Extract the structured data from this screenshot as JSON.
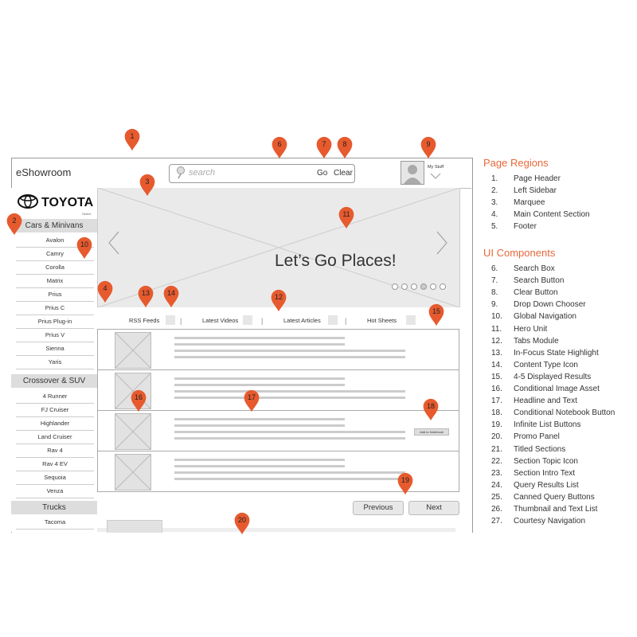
{
  "header": {
    "app_title": "eShowroom",
    "search_placeholder": "search",
    "go_label": "Go",
    "clear_label": "Clear",
    "my_stuff_label": "My Stuff"
  },
  "logo": {
    "brand": "TOYOTA",
    "sub": "Select"
  },
  "sidebar": {
    "categories": [
      {
        "title": "Cars & Minivans",
        "items": [
          "Avalon",
          "Camry",
          "Corolla",
          "Matrix",
          "Prius",
          "Prius C",
          "Prius Plug-in",
          "Prius V",
          "Sienna",
          "Yaris"
        ]
      },
      {
        "title": "Crossover & SUV",
        "items": [
          "4 Runner",
          "FJ Cruiser",
          "Highlander",
          "Land Cruiser",
          "Rav 4",
          "Rav 4 EV",
          "Sequoia",
          "Venza"
        ]
      },
      {
        "title": "Trucks",
        "items": [
          "Tacoma"
        ]
      }
    ]
  },
  "marquee": {
    "hero_text": "Let’s Go Places!",
    "slide_count": 6,
    "active_slide": 4
  },
  "tabs": [
    "RSS Feeds",
    "Latest Videos",
    "Latest Articles",
    "Hot Sheets"
  ],
  "list": {
    "notebook_label": "Add to Notebook"
  },
  "pagination": {
    "previous": "Previous",
    "next": "Next"
  },
  "pins": [
    "1",
    "2",
    "3",
    "4",
    "6",
    "7",
    "8",
    "9",
    "10",
    "11",
    "12",
    "13",
    "14",
    "15",
    "16",
    "17",
    "18",
    "19",
    "20"
  ],
  "legend": {
    "regions_title": "Page Regions",
    "regions": [
      {
        "n": "1.",
        "label": "Page Header"
      },
      {
        "n": "2.",
        "label": "Left Sidebar"
      },
      {
        "n": "3.",
        "label": "Marquee"
      },
      {
        "n": "4.",
        "label": "Main Content Section"
      },
      {
        "n": "5.",
        "label": "Footer"
      }
    ],
    "components_title": "UI Components",
    "components": [
      {
        "n": "6.",
        "label": "Search Box"
      },
      {
        "n": "7.",
        "label": "Search Button"
      },
      {
        "n": "8.",
        "label": "Clear Button"
      },
      {
        "n": "9.",
        "label": "Drop Down Chooser"
      },
      {
        "n": "10.",
        "label": "Global Navigation"
      },
      {
        "n": "11.",
        "label": "Hero Unit"
      },
      {
        "n": "12.",
        "label": "Tabs Module"
      },
      {
        "n": "13.",
        "label": "In-Focus State Highlight"
      },
      {
        "n": "14.",
        "label": "Content Type Icon"
      },
      {
        "n": "15.",
        "label": "4-5 Displayed Results"
      },
      {
        "n": "16.",
        "label": "Conditional Image Asset"
      },
      {
        "n": "17.",
        "label": "Headline and Text"
      },
      {
        "n": "18.",
        "label": "Conditional Notebook Button"
      },
      {
        "n": "19.",
        "label": "Infinite List Buttons"
      },
      {
        "n": "20.",
        "label": "Promo Panel"
      },
      {
        "n": "21.",
        "label": "Titled Sections"
      },
      {
        "n": "22.",
        "label": "Section Topic Icon"
      },
      {
        "n": "23.",
        "label": "Section Intro Text"
      },
      {
        "n": "24.",
        "label": "Query Results List"
      },
      {
        "n": "25.",
        "label": "Canned Query Buttons"
      },
      {
        "n": "26.",
        "label": "Thumbnail and Text List"
      },
      {
        "n": "27.",
        "label": "Courtesy Navigation"
      }
    ]
  },
  "colors": {
    "pin": "#e65a2e",
    "accent": "#e6683a",
    "wire": "#999999"
  }
}
